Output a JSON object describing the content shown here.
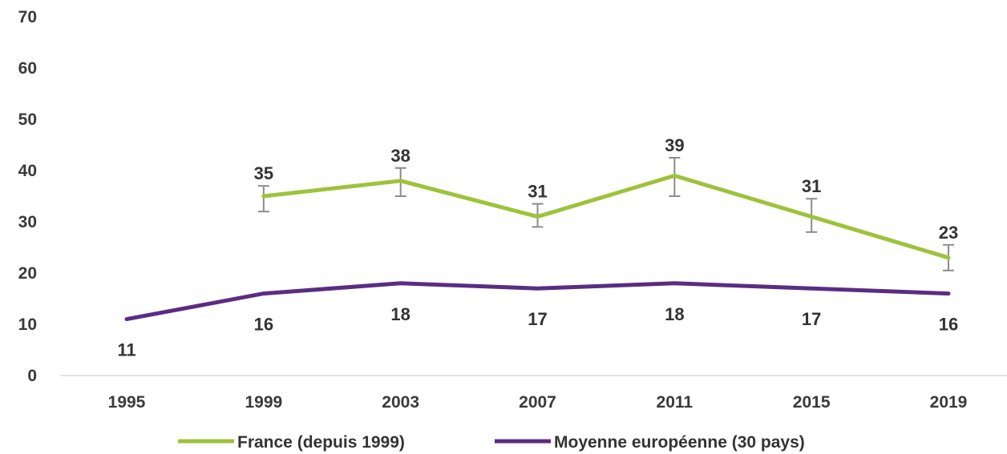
{
  "chart_data": {
    "type": "line",
    "title": "",
    "xlabel": "",
    "ylabel": "",
    "categories": [
      "1995",
      "1999",
      "2003",
      "2007",
      "2011",
      "2015",
      "2019"
    ],
    "ylim": [
      0,
      70
    ],
    "yticks": [
      0,
      10,
      20,
      30,
      40,
      50,
      60,
      70
    ],
    "grid": false,
    "legend": "bottom",
    "series": [
      {
        "name": "France (depuis 1999)",
        "color": "#9DC33B",
        "values": [
          null,
          35,
          38,
          31,
          39,
          31,
          23
        ],
        "labels": [
          "",
          "35",
          "38",
          "31",
          "39",
          "31",
          "23"
        ],
        "error_low": [
          null,
          32,
          35,
          29,
          35,
          28,
          20.5
        ],
        "error_high": [
          null,
          37,
          40.5,
          33.5,
          42.5,
          34.5,
          25.5
        ]
      },
      {
        "name": "Moyenne européenne (30 pays)",
        "color": "#5B2C83",
        "values": [
          11,
          16,
          18,
          17,
          18,
          17,
          16
        ],
        "labels": [
          "11",
          "16",
          "18",
          "17",
          "18",
          "17",
          "16"
        ]
      }
    ]
  }
}
